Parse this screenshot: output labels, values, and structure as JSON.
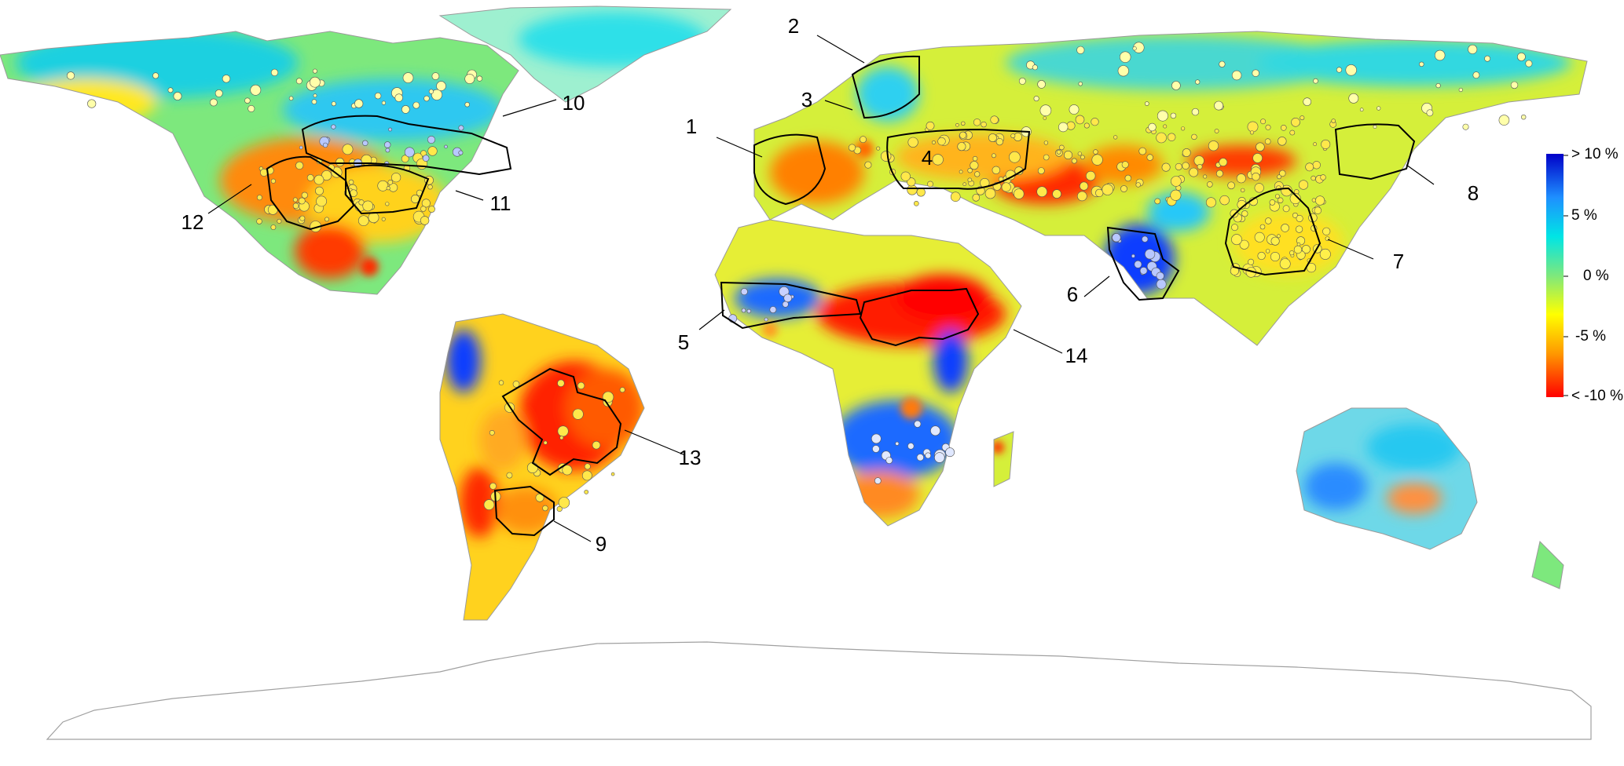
{
  "legend": {
    "title": "",
    "colors": [
      "#0000c8",
      "#1e90ff",
      "#00e5e5",
      "#7de87d",
      "#ffff00",
      "#ff9900",
      "#ff0000"
    ],
    "labels": [
      "> 10 %",
      "5 %",
      "0 %",
      "-5 %",
      "< -10 %"
    ]
  },
  "regions": [
    {
      "id": "1",
      "label": "1"
    },
    {
      "id": "2",
      "label": "2"
    },
    {
      "id": "3",
      "label": "3"
    },
    {
      "id": "4",
      "label": "4"
    },
    {
      "id": "5",
      "label": "5"
    },
    {
      "id": "6",
      "label": "6"
    },
    {
      "id": "7",
      "label": "7"
    },
    {
      "id": "8",
      "label": "8"
    },
    {
      "id": "9",
      "label": "9"
    },
    {
      "id": "10",
      "label": "10"
    },
    {
      "id": "11",
      "label": "11"
    },
    {
      "id": "12",
      "label": "12"
    },
    {
      "id": "13",
      "label": "13"
    },
    {
      "id": "14",
      "label": "14"
    }
  ],
  "colors": {
    "ocean": "#ffffff",
    "coastline": "#9a9a9a",
    "outline": "#000000",
    "wet": "#1e6bff",
    "neutral": "#7de87d",
    "dry": "#ff2a00"
  }
}
